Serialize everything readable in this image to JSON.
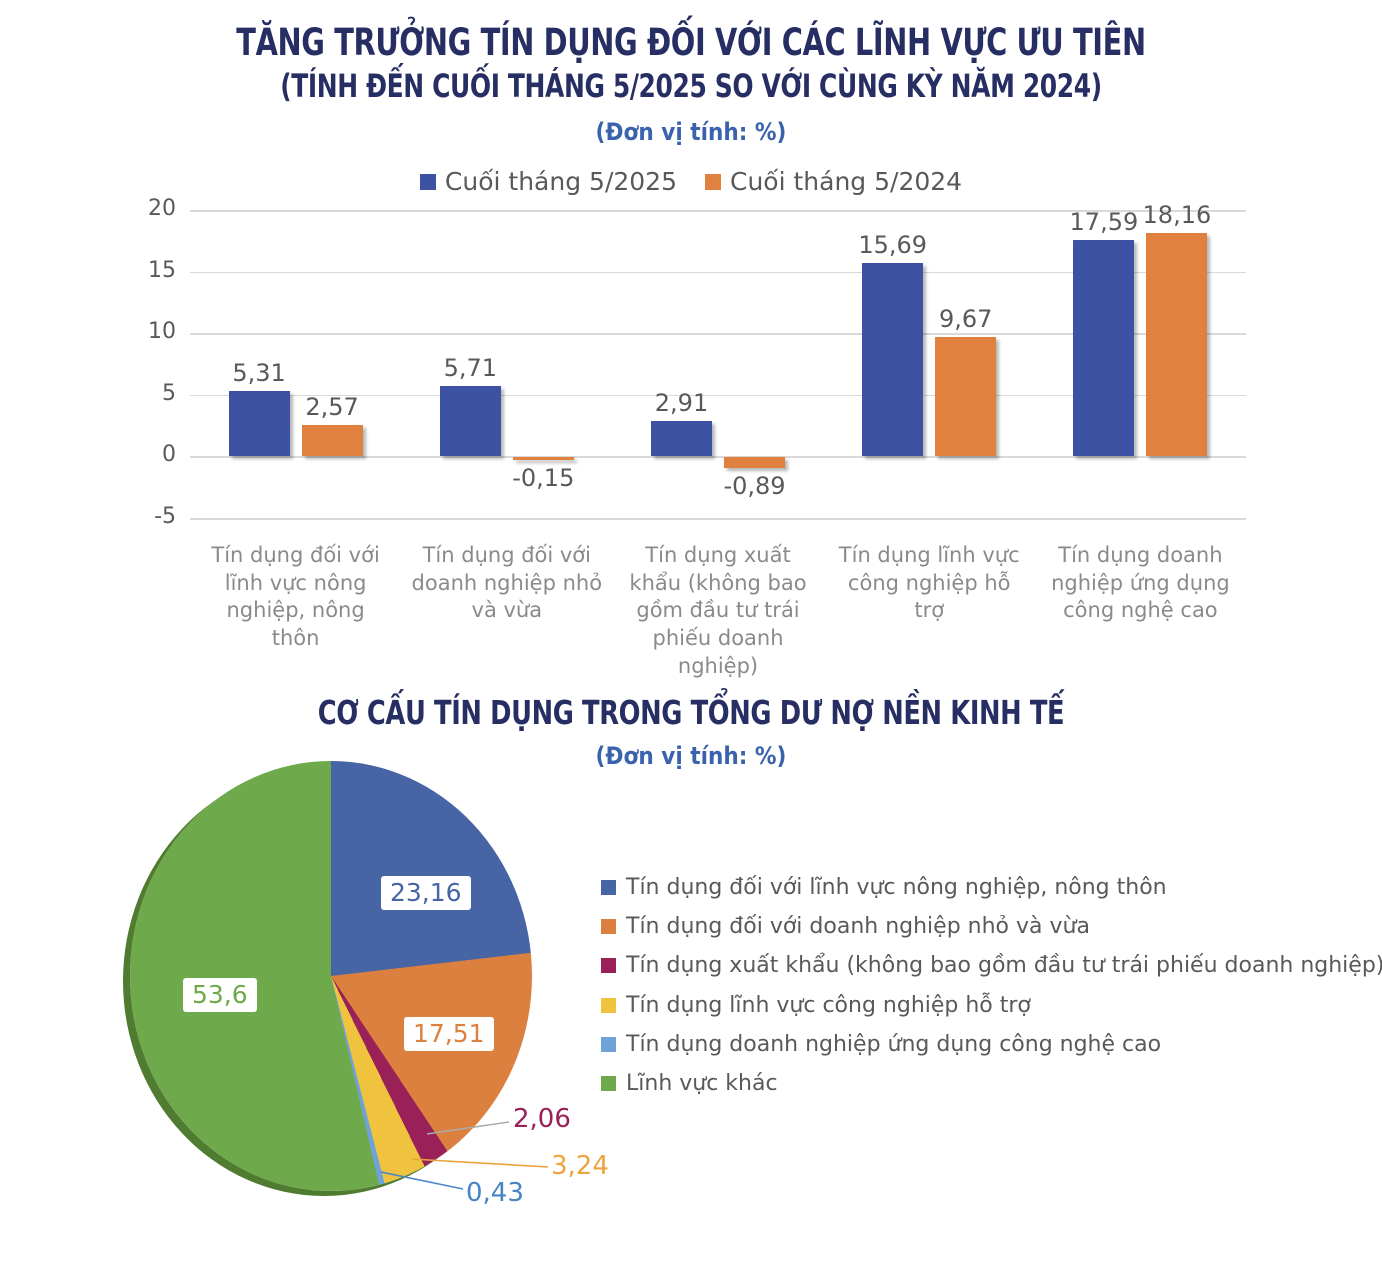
{
  "page": {
    "background": "#FFFFFF"
  },
  "chart_data": [
    {
      "type": "bar",
      "title": "TĂNG TRƯỞNG TÍN DỤNG ĐỐI VỚI CÁC LĨNH VỰC ƯU TIÊN",
      "subtitle": "(TÍNH ĐẾN CUỐI THÁNG 5/2025 SO VỚI CÙNG KỲ NĂM 2024)",
      "unit": "(Đơn vị tính: %)",
      "title_color": "#272E63",
      "unit_color": "#3B62AD",
      "grid": true,
      "legend_position": "top",
      "gridline_color": "#D9D9D9",
      "tick_color": "#595959",
      "value_label_color": "#595959",
      "category_color": "#8A8A8A",
      "yticks": [
        20,
        15,
        10,
        5,
        0,
        -5
      ],
      "ylim": [
        -5,
        20
      ],
      "categories": [
        "Tín dụng đối với lĩnh vực nông nghiệp, nông thôn",
        "Tín dụng đối với doanh nghiệp nhỏ và vừa",
        "Tín dụng xuất khẩu (không bao gồm đầu tư trái phiếu doanh nghiệp)",
        "Tín dụng lĩnh vực công nghiệp hỗ trợ",
        "Tín dụng doanh nghiệp ứng dụng công nghệ cao"
      ],
      "series": [
        {
          "name": "Cuối tháng 5/2025",
          "color": "#3E52A3",
          "values": [
            5.31,
            5.71,
            2.91,
            15.69,
            17.59
          ],
          "value_labels": [
            "5,31",
            "5,71",
            "2,91",
            "15,69",
            "17,59"
          ]
        },
        {
          "name": "Cuối tháng 5/2024",
          "color": "#E08140",
          "values": [
            2.57,
            -0.15,
            -0.89,
            9.67,
            18.16
          ],
          "value_labels": [
            "2,57",
            "-0,15",
            "-0,89",
            "9,67",
            "18,16"
          ]
        }
      ]
    },
    {
      "type": "pie",
      "title": "CƠ CẤU TÍN DỤNG TRONG TỔNG DƯ NỢ NỀN KINH TẾ",
      "unit": "(Đơn vị tính: %)",
      "title_color": "#272E63",
      "unit_color": "#3B62AD",
      "start_angle_deg": 0,
      "direction": "clockwise",
      "rim_color": "#4F7C30",
      "legend_text_color": "#595959",
      "slices": [
        {
          "label": "Tín dụng đối với lĩnh vực nông nghiệp, nông thôn",
          "value": 23.16,
          "display": "23,16",
          "color": "#4765A4",
          "label_color": "#4765A4",
          "label_style": "boxed"
        },
        {
          "label": "Tín dụng đối với doanh nghiệp nhỏ và vừa",
          "value": 17.51,
          "display": "17,51",
          "color": "#DC8040",
          "label_color": "#DC8040",
          "label_style": "boxed"
        },
        {
          "label": "Tín dụng xuất khẩu (không bao gồm đầu tư trái phiếu doanh nghiệp)",
          "value": 2.06,
          "display": "2,06",
          "color": "#9A2157",
          "label_color": "#9A2157",
          "label_style": "callout",
          "leader_color": "#ABABAB"
        },
        {
          "label": "Tín dụng lĩnh vực công nghiệp hỗ trợ",
          "value": 3.24,
          "display": "3,24",
          "color": "#EFC33E",
          "label_color": "#EFA33C",
          "label_style": "callout",
          "leader_color": "#E9A23C"
        },
        {
          "label": "Tín dụng doanh nghiệp ứng dụng công nghệ cao",
          "value": 0.43,
          "display": "0,43",
          "color": "#6FA3D8",
          "label_color": "#4585C5",
          "label_style": "callout",
          "leader_color": "#4A86C8"
        },
        {
          "label": "Lĩnh vực khác",
          "value": 53.6,
          "display": "53,6",
          "color": "#6EA94C",
          "label_color": "#6EA94C",
          "label_style": "boxed"
        }
      ]
    }
  ]
}
